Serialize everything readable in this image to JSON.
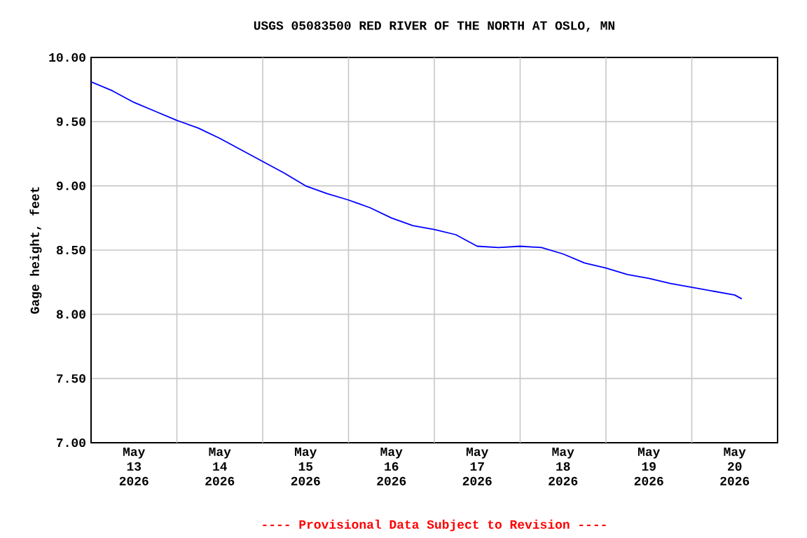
{
  "chart_data": {
    "type": "line",
    "title": "USGS 05083500 RED RIVER OF THE NORTH AT OSLO, MN",
    "ylabel": "Gage height, feet",
    "annotations": [
      "---- Provisional Data Subject to Revision ----"
    ],
    "x": [
      "2026-05-13T00:00",
      "2026-05-13T06:00",
      "2026-05-13T12:00",
      "2026-05-13T18:00",
      "2026-05-14T00:00",
      "2026-05-14T06:00",
      "2026-05-14T12:00",
      "2026-05-14T18:00",
      "2026-05-15T00:00",
      "2026-05-15T06:00",
      "2026-05-15T12:00",
      "2026-05-15T18:00",
      "2026-05-16T00:00",
      "2026-05-16T06:00",
      "2026-05-16T12:00",
      "2026-05-16T18:00",
      "2026-05-17T00:00",
      "2026-05-17T06:00",
      "2026-05-17T12:00",
      "2026-05-17T18:00",
      "2026-05-18T00:00",
      "2026-05-18T06:00",
      "2026-05-18T12:00",
      "2026-05-18T18:00",
      "2026-05-19T00:00",
      "2026-05-19T06:00",
      "2026-05-19T12:00",
      "2026-05-19T18:00",
      "2026-05-20T00:00",
      "2026-05-20T06:00",
      "2026-05-20T12:00",
      "2026-05-20T14:00"
    ],
    "series": [
      {
        "color": "#0000ff",
        "values": [
          9.81,
          9.74,
          9.65,
          9.58,
          9.51,
          9.45,
          9.37,
          9.28,
          9.19,
          9.1,
          9.0,
          8.94,
          8.89,
          8.83,
          8.75,
          8.69,
          8.66,
          8.62,
          8.53,
          8.52,
          8.53,
          8.52,
          8.47,
          8.4,
          8.36,
          8.31,
          8.28,
          8.24,
          8.21,
          8.18,
          8.15,
          8.12
        ]
      }
    ],
    "xlim": [
      "2026-05-13T00:00",
      "2026-05-21T00:00"
    ],
    "xticks": [
      {
        "value": "2026-05-13T12:00",
        "label": "May 13 2026"
      },
      {
        "value": "2026-05-14T12:00",
        "label": "May 14 2026"
      },
      {
        "value": "2026-05-15T12:00",
        "label": "May 15 2026"
      },
      {
        "value": "2026-05-16T12:00",
        "label": "May 16 2026"
      },
      {
        "value": "2026-05-17T12:00",
        "label": "May 17 2026"
      },
      {
        "value": "2026-05-18T12:00",
        "label": "May 18 2026"
      },
      {
        "value": "2026-05-19T12:00",
        "label": "May 19 2026"
      },
      {
        "value": "2026-05-20T12:00",
        "label": "May 20 2026"
      },
      {
        "value": "2026-05-14T00:00",
        "label": null
      },
      {
        "value": "2026-05-15T00:00",
        "label": null
      },
      {
        "value": "2026-05-16T00:00",
        "label": null
      },
      {
        "value": "2026-05-17T00:00",
        "label": null
      },
      {
        "value": "2026-05-18T00:00",
        "label": null
      },
      {
        "value": "2026-05-19T00:00",
        "label": null
      },
      {
        "value": "2026-05-20T00:00",
        "label": null
      }
    ],
    "ylim": [
      7.0,
      10.0
    ],
    "yticks": [
      {
        "value": 7.0,
        "label": "7.00"
      },
      {
        "value": 7.5,
        "label": "7.50"
      },
      {
        "value": 8.0,
        "label": "8.00"
      },
      {
        "value": 8.5,
        "label": "8.50"
      },
      {
        "value": 9.0,
        "label": "9.00"
      },
      {
        "value": 9.5,
        "label": "9.50"
      },
      {
        "value": 10.0,
        "label": "10.00"
      }
    ],
    "grid": true,
    "marker": "none",
    "line_style": "solid"
  }
}
